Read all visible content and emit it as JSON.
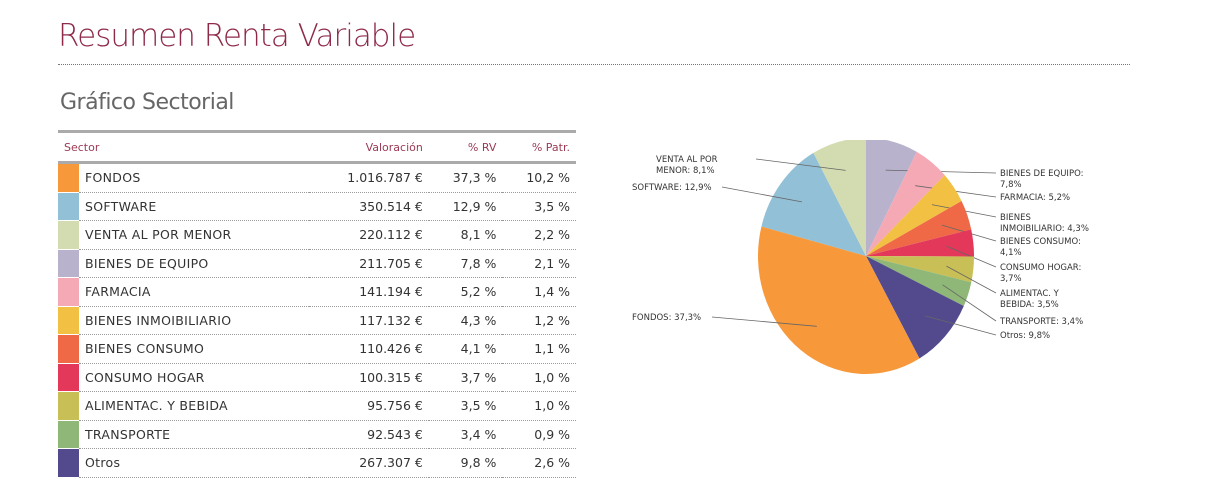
{
  "header": {
    "title": "Resumen Renta Variable",
    "subtitle": "Gráfico Sectorial"
  },
  "table": {
    "headers": [
      "Sector",
      "Valoración",
      "% RV",
      "% Patr."
    ],
    "rows": [
      {
        "sector": "FONDOS",
        "valor": "1.016.787 €",
        "rv": "37,3 %",
        "patr": "10,2 %",
        "color": "#f7983a"
      },
      {
        "sector": "SOFTWARE",
        "valor": "350.514 €",
        "rv": "12,9 %",
        "patr": "3,5 %",
        "color": "#92c0d6"
      },
      {
        "sector": "VENTA AL POR MENOR",
        "valor": "220.112 €",
        "rv": "8,1 %",
        "patr": "2,2 %",
        "color": "#d3dcb0"
      },
      {
        "sector": "BIENES DE EQUIPO",
        "valor": "211.705 €",
        "rv": "7,8 %",
        "patr": "2,1 %",
        "color": "#b9b2cd"
      },
      {
        "sector": "FARMACIA",
        "valor": "141.194 €",
        "rv": "5,2 %",
        "patr": "1,4 %",
        "color": "#f4a9b5"
      },
      {
        "sector": "BIENES INMOIBILIARIO",
        "valor": "117.132 €",
        "rv": "4,3 %",
        "patr": "1,2 %",
        "color": "#f2c043"
      },
      {
        "sector": "BIENES CONSUMO",
        "valor": "110.426 €",
        "rv": "4,1 %",
        "patr": "1,1 %",
        "color": "#ef6946"
      },
      {
        "sector": "CONSUMO HOGAR",
        "valor": "100.315 €",
        "rv": "3,7 %",
        "patr": "1,0 %",
        "color": "#e3385a"
      },
      {
        "sector": "ALIMENTAC. Y BEBIDA",
        "valor": "95.756 €",
        "rv": "3,5 %",
        "patr": "1,0 %",
        "color": "#c8c056"
      },
      {
        "sector": "TRANSPORTE",
        "valor": "92.543 €",
        "rv": "3,4 %",
        "patr": "0,9 %",
        "color": "#8fb878"
      },
      {
        "sector": "Otros",
        "valor": "267.307 €",
        "rv": "9,8 %",
        "patr": "2,6 %",
        "color": "#534a8e"
      }
    ]
  },
  "chart_data": {
    "type": "pie",
    "title": "Gráfico Sectorial",
    "categories": [
      "BIENES DE EQUIPO",
      "FARMACIA",
      "BIENES INMOIBILIARIO",
      "BIENES CONSUMO",
      "CONSUMO HOGAR",
      "ALIMENTAC. Y BEBIDA",
      "TRANSPORTE",
      "Otros",
      "FONDOS",
      "SOFTWARE",
      "VENTA AL POR MENOR"
    ],
    "values": [
      7.8,
      5.2,
      4.3,
      4.1,
      3.7,
      3.5,
      3.4,
      9.8,
      37.3,
      12.9,
      8.1
    ],
    "colors": [
      "#b9b2cd",
      "#f4a9b5",
      "#f2c043",
      "#ef6946",
      "#e3385a",
      "#c8c056",
      "#8fb878",
      "#534a8e",
      "#f7983a",
      "#92c0d6",
      "#d3dcb0"
    ],
    "labels": [
      [
        "BIENES DE EQUIPO:",
        "7,8%"
      ],
      [
        "FARMACIA: 5,2%"
      ],
      [
        "BIENES",
        "INMOIBILIARIO: 4,3%"
      ],
      [
        "BIENES CONSUMO:",
        "4,1%"
      ],
      [
        "CONSUMO HOGAR:",
        "3,7%"
      ],
      [
        "ALIMENTAC. Y",
        "BEBIDA: 3,5%"
      ],
      [
        "TRANSPORTE: 3,4%"
      ],
      [
        "Otros: 9,8%"
      ],
      [
        "FONDOS: 37,3%"
      ],
      [
        "SOFTWARE: 12,9%"
      ],
      [
        "VENTA AL POR",
        "MENOR: 8,1%"
      ]
    ]
  }
}
